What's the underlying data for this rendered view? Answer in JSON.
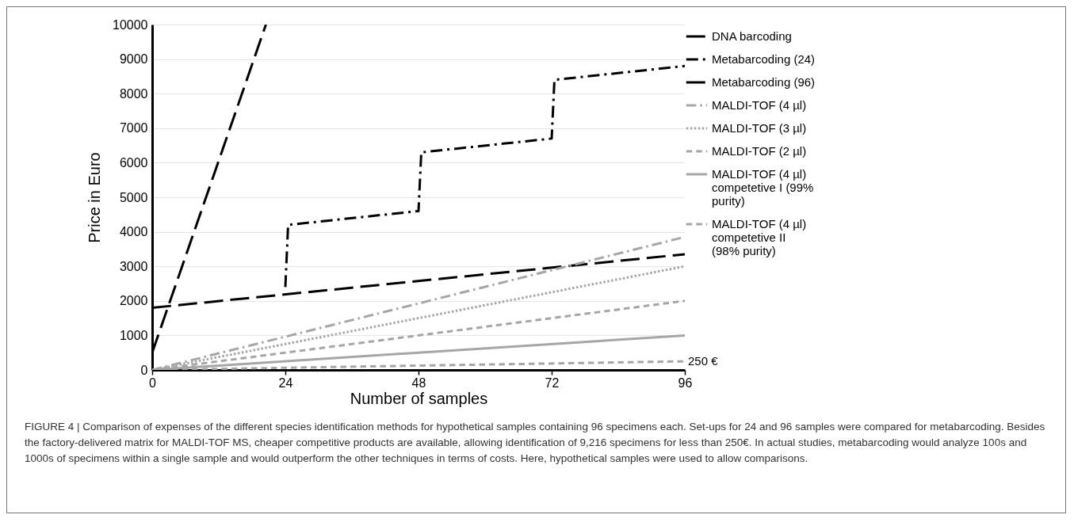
{
  "chart_data": {
    "type": "line",
    "xlabel": "Number of samples",
    "ylabel": "Price in Euro",
    "xlim": [
      0,
      96
    ],
    "xticks": [
      0,
      24,
      48,
      72,
      96
    ],
    "ylim": [
      0,
      10000
    ],
    "yticks": [
      0,
      1000,
      2000,
      3000,
      4000,
      5000,
      6000,
      7000,
      8000,
      9000,
      10000
    ],
    "grid": "y",
    "legend": "right",
    "marker": "none",
    "series": [
      {
        "name": "DNA barcoding",
        "color": "#000000",
        "line_style": "dashed",
        "x": [
          0,
          20.5
        ],
        "values": [
          500,
          10000
        ]
      },
      {
        "name": "Metabarcoding (24)",
        "color": "#000000",
        "line_style": "dashdot",
        "x": [
          24,
          24.5,
          48,
          48.5,
          72,
          72.5,
          96
        ],
        "values": [
          2400,
          4200,
          4600,
          6300,
          6700,
          8400,
          8800
        ]
      },
      {
        "name": "Metabarcoding (96)",
        "color": "#000000",
        "line_style": "dashed",
        "x": [
          0,
          96
        ],
        "values": [
          1800,
          3350
        ]
      },
      {
        "name": "MALDI-TOF (4 µl)",
        "color": "#a6a6a6",
        "line_style": "dashdot",
        "x": [
          0,
          96
        ],
        "values": [
          0,
          3850
        ]
      },
      {
        "name": "MALDI-TOF (3 µl)",
        "color": "#a6a6a6",
        "line_style": "dotted",
        "x": [
          0,
          96
        ],
        "values": [
          0,
          3000
        ]
      },
      {
        "name": "MALDI-TOF (2 µl)",
        "color": "#a6a6a6",
        "line_style": "dashed",
        "x": [
          0,
          96
        ],
        "values": [
          0,
          2000
        ]
      },
      {
        "name": "MALDI-TOF (4 µl) competetive I (99% purity)",
        "color": "#a6a6a6",
        "line_style": "solid",
        "x": [
          0,
          96
        ],
        "values": [
          0,
          1000
        ]
      },
      {
        "name": "MALDI-TOF (4 µl) competetive II (98% purity)",
        "color": "#a6a6a6",
        "line_style": "dashed",
        "x": [
          0,
          96
        ],
        "values": [
          0,
          250
        ]
      }
    ],
    "annotations": [
      {
        "text": "250 €",
        "x": 96,
        "y": 250
      },
      "FIGURE 4 | Comparison of expenses of the different species identification methods for hypothetical samples containing 96 specimens each. Set-ups for 24 and 96 samples were compared for metabarcoding. Besides the factory-delivered matrix for MALDI-TOF MS, cheaper competitive products are available, allowing identification of 9,216 specimens for less than 250€. In actual studies, metabarcoding would analyze 100s and 1000s of specimens within a single sample and would outperform the other techniques in terms of costs. Here, hypothetical samples were used to allow comparisons."
    ]
  }
}
